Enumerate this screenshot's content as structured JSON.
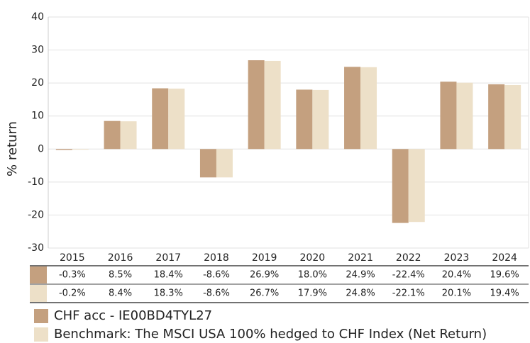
{
  "chart_data": {
    "type": "bar",
    "ylabel": "% return",
    "categories": [
      "2015",
      "2016",
      "2017",
      "2018",
      "2019",
      "2020",
      "2021",
      "2022",
      "2023",
      "2024"
    ],
    "series": [
      {
        "name": "CHF acc - IE00BD4TYL27",
        "color": "#c4a07f",
        "values": [
          -0.3,
          8.5,
          18.4,
          -8.6,
          26.9,
          18.0,
          24.9,
          -22.4,
          20.4,
          19.6
        ],
        "value_labels": [
          "-0.3%",
          "8.5%",
          "18.4%",
          "-8.6%",
          "26.9%",
          "18.0%",
          "24.9%",
          "-22.4%",
          "20.4%",
          "19.6%"
        ]
      },
      {
        "name": "Benchmark: The MSCI USA 100% hedged to CHF Index (Net Return)",
        "color": "#ede0c8",
        "values": [
          -0.2,
          8.4,
          18.3,
          -8.6,
          26.7,
          17.9,
          24.8,
          -22.1,
          20.1,
          19.4
        ],
        "value_labels": [
          "-0.2%",
          "8.4%",
          "18.3%",
          "-8.6%",
          "26.7%",
          "17.9%",
          "24.8%",
          "-22.1%",
          "20.1%",
          "19.4%"
        ]
      }
    ],
    "ylim": [
      -30,
      40
    ],
    "yticks": [
      -30,
      -20,
      -10,
      0,
      10,
      20,
      30,
      40
    ],
    "grid": true
  }
}
